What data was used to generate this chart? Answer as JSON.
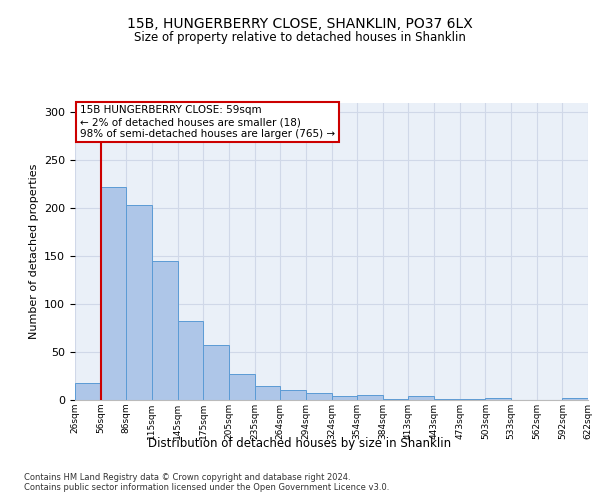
{
  "title": "15B, HUNGERBERRY CLOSE, SHANKLIN, PO37 6LX",
  "subtitle": "Size of property relative to detached houses in Shanklin",
  "xlabel": "Distribution of detached houses by size in Shanklin",
  "ylabel": "Number of detached properties",
  "bin_labels": [
    "26sqm",
    "56sqm",
    "86sqm",
    "115sqm",
    "145sqm",
    "175sqm",
    "205sqm",
    "235sqm",
    "264sqm",
    "294sqm",
    "324sqm",
    "354sqm",
    "384sqm",
    "413sqm",
    "443sqm",
    "473sqm",
    "503sqm",
    "533sqm",
    "562sqm",
    "592sqm",
    "622sqm"
  ],
  "bar_heights": [
    18,
    222,
    203,
    145,
    82,
    57,
    27,
    15,
    10,
    7,
    4,
    5,
    1,
    4,
    1,
    1,
    2,
    0,
    0,
    2
  ],
  "bar_color": "#aec6e8",
  "bar_edge_color": "#5b9bd5",
  "grid_color": "#d0d8e8",
  "background_color": "#eaf0f8",
  "annotation_text": "15B HUNGERBERRY CLOSE: 59sqm\n← 2% of detached houses are smaller (18)\n98% of semi-detached houses are larger (765) →",
  "annotation_box_color": "#ffffff",
  "annotation_box_edge_color": "#cc0000",
  "vline_color": "#cc0000",
  "vline_x_idx": 1,
  "ylim": [
    0,
    310
  ],
  "yticks": [
    0,
    50,
    100,
    150,
    200,
    250,
    300
  ],
  "footer1": "Contains HM Land Registry data © Crown copyright and database right 2024.",
  "footer2": "Contains public sector information licensed under the Open Government Licence v3.0."
}
